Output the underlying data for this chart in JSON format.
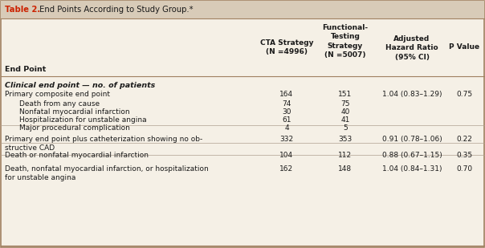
{
  "title_bold": "Table 2.",
  "title_rest": " End Points According to Study Group.*",
  "table_bg": "#f5f0e6",
  "header_bg": "#e8e0d0",
  "title_bar_bg": "#d8cbb8",
  "border_color": "#a08060",
  "line_color": "#b0a090",
  "title_color": "#cc2200",
  "text_color": "#1a1a1a",
  "figsize": [
    6.04,
    3.09
  ],
  "dpi": 100,
  "col_headers": [
    "End Point",
    "CTA Strategy\n(N =4996)",
    "Functional-\nTesting\nStrategy\n(N =5007)",
    "Adjusted\nHazard Ratio\n(95% CI)",
    "P Value"
  ],
  "subheader": "Clinical end point — no. of patients",
  "rows": [
    {
      "label": "Primary composite end point",
      "indent": 0,
      "cta": "164",
      "func": "151",
      "hr": "1.04 (0.83–1.29)",
      "pval": "0.75"
    },
    {
      "label": "Death from any cause",
      "indent": 1,
      "cta": "74",
      "func": "75",
      "hr": "",
      "pval": ""
    },
    {
      "label": "Nonfatal myocardial infarction",
      "indent": 1,
      "cta": "30",
      "func": "40",
      "hr": "",
      "pval": ""
    },
    {
      "label": "Hospitalization for unstable angina",
      "indent": 1,
      "cta": "61",
      "func": "41",
      "hr": "",
      "pval": ""
    },
    {
      "label": "Major procedural complication",
      "indent": 1,
      "cta": "4",
      "func": "5",
      "hr": "",
      "pval": ""
    },
    {
      "label": "Primary end point plus catheterization showing no ob-\nstructive CAD",
      "indent": 0,
      "cta": "332",
      "func": "353",
      "hr": "0.91 (0.78–1.06)",
      "pval": "0.22"
    },
    {
      "label": "Death or nonfatal myocardial infarction",
      "indent": 0,
      "cta": "104",
      "func": "112",
      "hr": "0.88 (0.67–1.15)",
      "pval": "0.35"
    },
    {
      "label": "Death, nonfatal myocardial infarction, or hospitalization\nfor unstable angina",
      "indent": 0,
      "cta": "162",
      "func": "148",
      "hr": "1.04 (0.84–1.31)",
      "pval": "0.70"
    }
  ]
}
